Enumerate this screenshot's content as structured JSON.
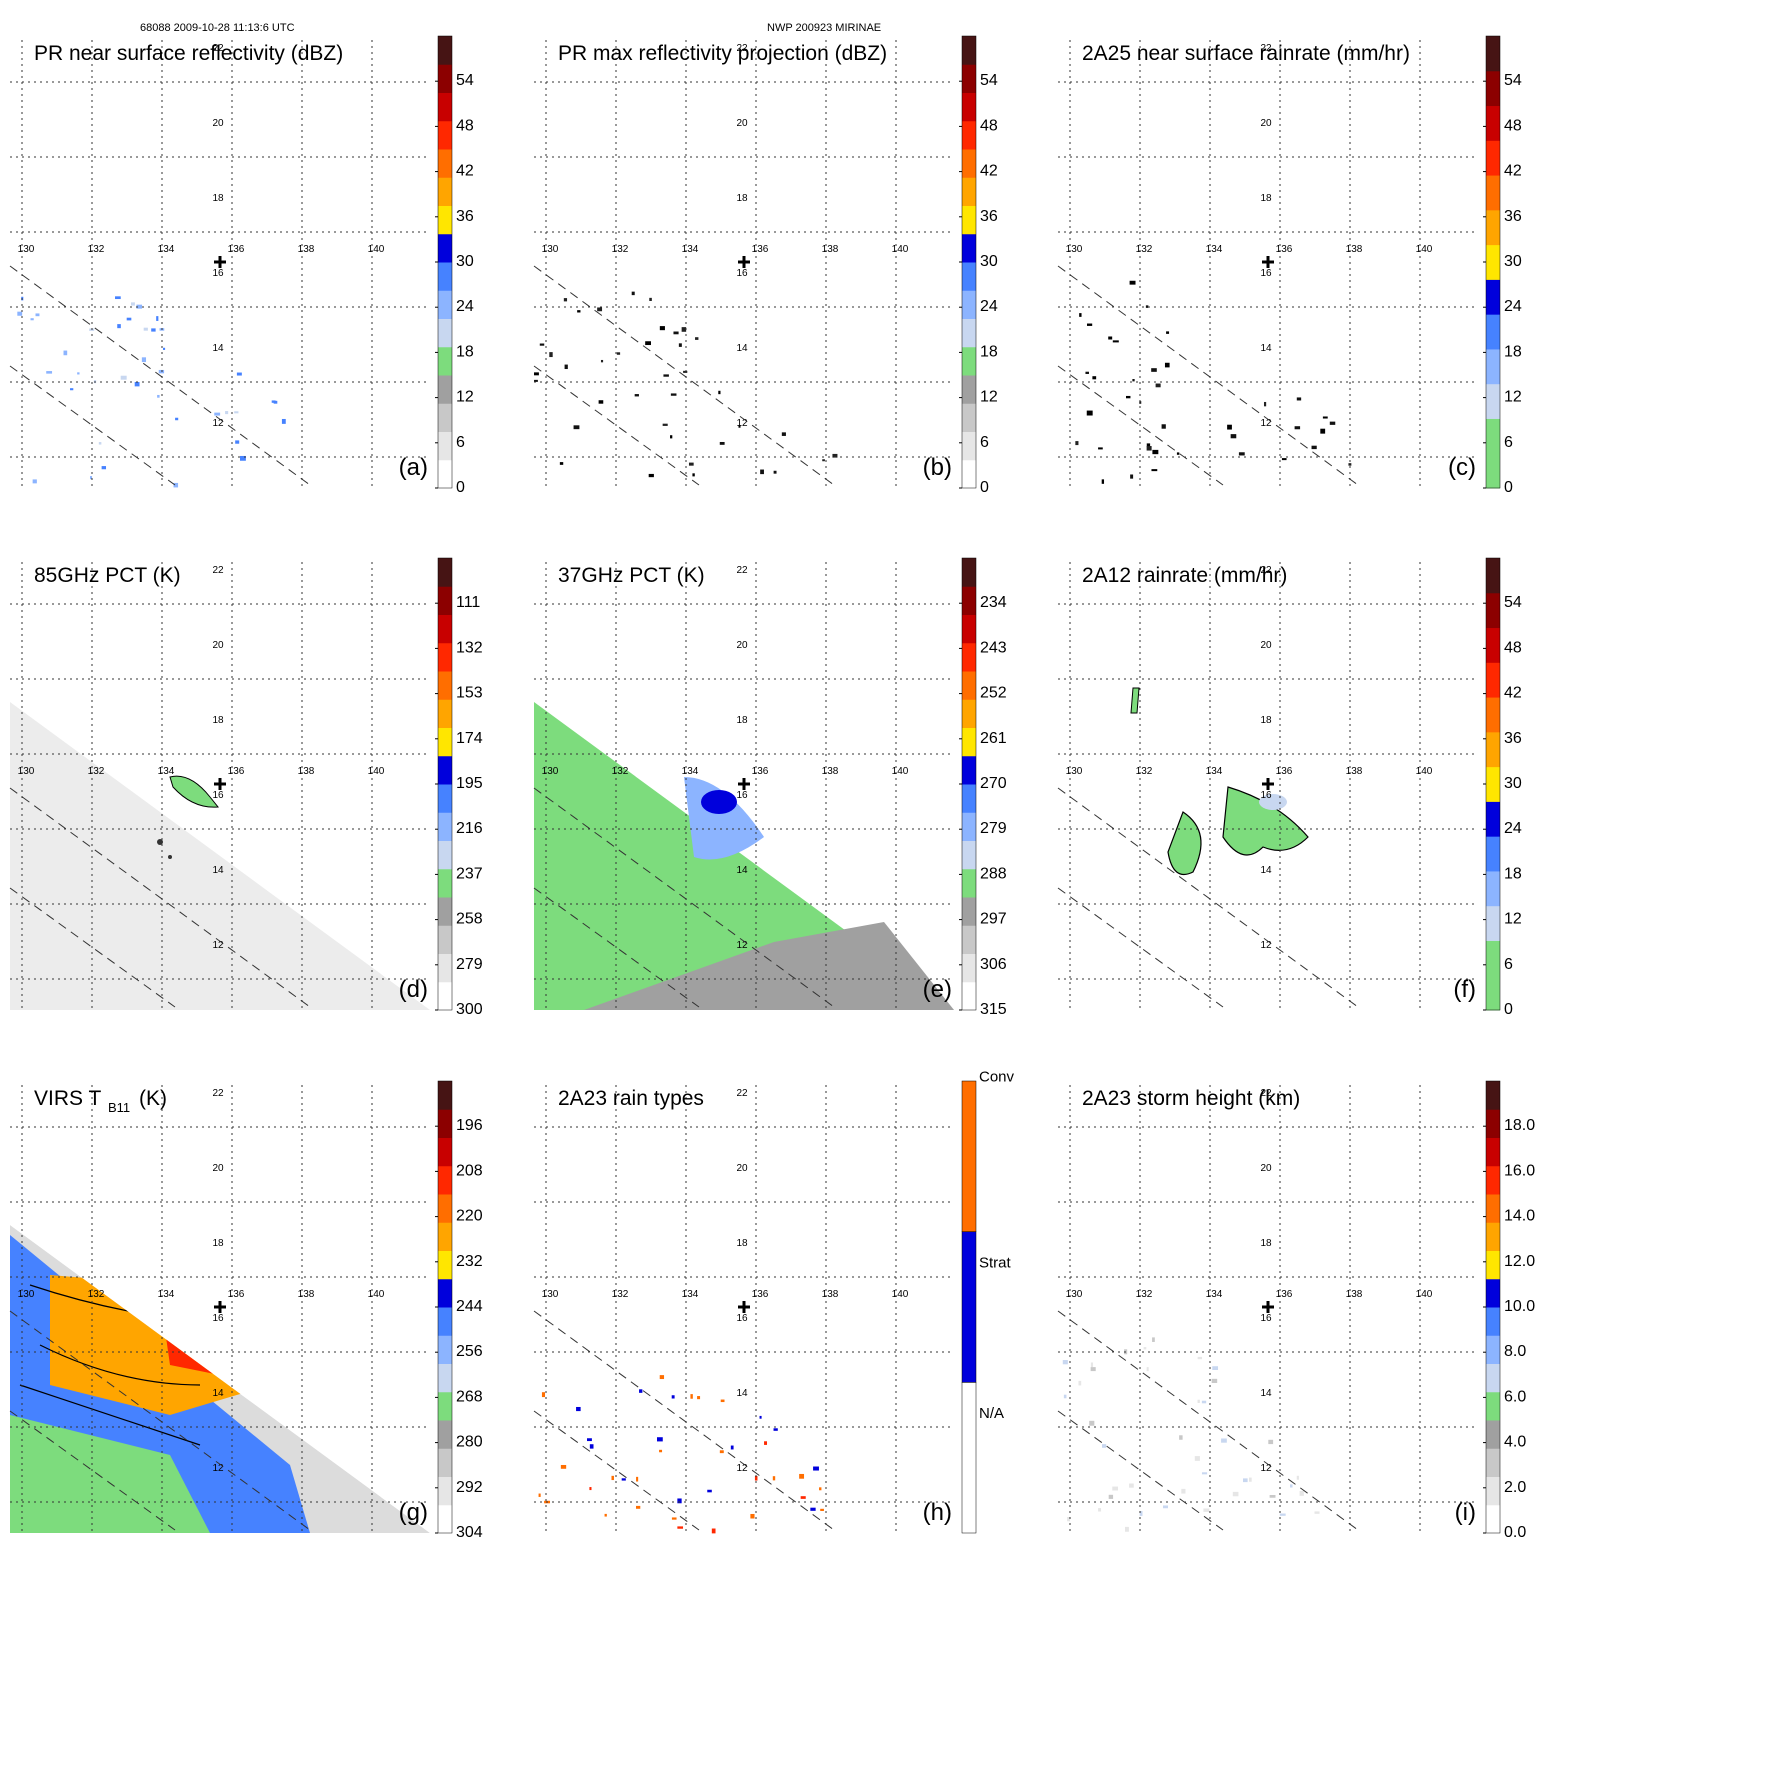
{
  "header": {
    "left": "68088 2009-10-28 11:13:6 UTC",
    "center": "NWP 200923 MIRINAE"
  },
  "map": {
    "lon_ticks": [
      "130",
      "132",
      "134",
      "136",
      "138",
      "140"
    ],
    "lat_ticks": [
      "22",
      "20",
      "18",
      "16",
      "14",
      "12"
    ],
    "center_marker": "cross-icon"
  },
  "colors": {
    "gray": [
      "#ffffff",
      "#e6e6e6",
      "#c8c8c8",
      "#a0a0a0"
    ],
    "green": "#7ddc7d",
    "blue": [
      "#c8d7f0",
      "#8cb4ff",
      "#4682ff",
      "#0000dc"
    ],
    "yellow": "#ffe600",
    "orange": [
      "#ffa500",
      "#ff6e00"
    ],
    "red": [
      "#ff2800",
      "#c80000",
      "#8c0000"
    ],
    "dark": "#461414"
  },
  "chart_data": [
    {
      "id": "a",
      "type": "heatmap",
      "title": "PR near surface reflectivity (dBZ)",
      "colorbar_labels": [
        "0",
        "6",
        "12",
        "18",
        "24",
        "30",
        "36",
        "42",
        "48",
        "54"
      ],
      "colorbar_range": [
        0,
        60
      ],
      "panel_label": "(a)",
      "field": "sparse-light"
    },
    {
      "id": "b",
      "type": "heatmap",
      "title": "PR max reflectivity projection (dBZ)",
      "colorbar_labels": [
        "0",
        "6",
        "12",
        "18",
        "24",
        "30",
        "36",
        "42",
        "48",
        "54"
      ],
      "colorbar_range": [
        0,
        60
      ],
      "panel_label": "(b)",
      "field": "sparse-dark"
    },
    {
      "id": "c",
      "type": "heatmap",
      "title": "2A25 near surface rainrate (mm/hr)",
      "colorbar_labels": [
        "0",
        "6",
        "12",
        "18",
        "24",
        "30",
        "36",
        "42",
        "48",
        "54"
      ],
      "colorbar_range": [
        0,
        60
      ],
      "panel_label": "(c)",
      "field": "sparse-dark",
      "scale": "no-gray"
    },
    {
      "id": "d",
      "type": "heatmap",
      "title": "85GHz PCT (K)",
      "colorbar_labels": [
        "300",
        "279",
        "258",
        "237",
        "216",
        "195",
        "174",
        "153",
        "132",
        "111"
      ],
      "colorbar_range": [
        300,
        90
      ],
      "panel_label": "(d)",
      "field": "triangle-gray"
    },
    {
      "id": "e",
      "type": "heatmap",
      "title": "37GHz PCT (K)",
      "colorbar_labels": [
        "315",
        "306",
        "297",
        "288",
        "279",
        "270",
        "261",
        "252",
        "243",
        "234"
      ],
      "colorbar_range": [
        315,
        225
      ],
      "panel_label": "(e)",
      "field": "triangle-green"
    },
    {
      "id": "f",
      "type": "heatmap",
      "title": "2A12 rainrate (mm/hr)",
      "colorbar_labels": [
        "0",
        "6",
        "12",
        "18",
        "24",
        "30",
        "36",
        "42",
        "48",
        "54"
      ],
      "colorbar_range": [
        0,
        60
      ],
      "panel_label": "(f)",
      "field": "green-blobs",
      "scale": "no-gray"
    },
    {
      "id": "g",
      "type": "heatmap",
      "title": "VIRS T",
      "title_sub": "B11",
      "title_unit": "(K)",
      "colorbar_labels": [
        "304",
        "292",
        "280",
        "268",
        "256",
        "244",
        "232",
        "220",
        "208",
        "196"
      ],
      "colorbar_range": [
        304,
        184
      ],
      "panel_label": "(g)",
      "field": "triangle-virs"
    },
    {
      "id": "h",
      "type": "heatmap",
      "title": "2A23 rain types",
      "colorbar_categories": [
        "N/A",
        "Strat",
        "Conv"
      ],
      "panel_label": "(h)",
      "field": "rain-types"
    },
    {
      "id": "i",
      "type": "heatmap",
      "title": "2A23 storm height (km)",
      "colorbar_labels": [
        "0.0",
        "2.0",
        "4.0",
        "6.0",
        "8.0",
        "10.0",
        "12.0",
        "14.0",
        "16.0",
        "18.0"
      ],
      "colorbar_range": [
        0,
        20
      ],
      "panel_label": "(i)",
      "field": "sparse-gray"
    }
  ]
}
